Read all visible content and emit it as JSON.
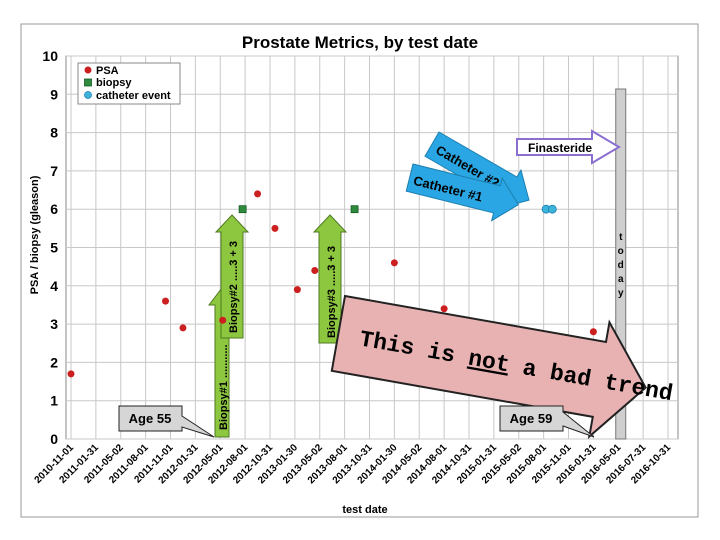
{
  "chart_data": {
    "type": "scatter",
    "title": "Prostate Metrics, by test date",
    "xlabel": "test date",
    "ylabel": "PSA / biopsy (gleason)",
    "ylim": [
      0,
      10
    ],
    "yticks": [
      "0",
      "1",
      "2",
      "3",
      "4",
      "5",
      "6",
      "7",
      "8",
      "9",
      "10"
    ],
    "xticks": [
      "2010-11-01",
      "2011-01-31",
      "2011-05-02",
      "2011-08-01",
      "2011-11-01",
      "2012-01-31",
      "2012-05-01",
      "2012-08-01",
      "2012-10-31",
      "2013-01-30",
      "2013-05-02",
      "2013-08-01",
      "2013-10-31",
      "2014-01-30",
      "2014-05-02",
      "2014-08-01",
      "2014-10-31",
      "2015-01-31",
      "2015-05-02",
      "2015-08-01",
      "2015-11-01",
      "2016-01-31",
      "2016-05-01",
      "2016-07-31",
      "2016-10-31"
    ],
    "grid": true,
    "legend_position": "top-left",
    "series": [
      {
        "name": "PSA",
        "color": "#cc1f1f",
        "marker": "circle",
        "points": [
          {
            "x": 0.0,
            "y": 1.7
          },
          {
            "x": 3.8,
            "y": 3.6
          },
          {
            "x": 4.5,
            "y": 2.9
          },
          {
            "x": 6.1,
            "y": 3.1
          },
          {
            "x": 7.5,
            "y": 6.4
          },
          {
            "x": 8.2,
            "y": 5.5
          },
          {
            "x": 9.1,
            "y": 3.9
          },
          {
            "x": 9.8,
            "y": 4.4
          },
          {
            "x": 13.0,
            "y": 4.6
          },
          {
            "x": 15.0,
            "y": 3.4
          },
          {
            "x": 16.5,
            "y": 2.9
          },
          {
            "x": 21.0,
            "y": 2.8
          }
        ]
      },
      {
        "name": "biopsy",
        "color": "#2e8b3e",
        "marker": "square",
        "points": [
          {
            "x": 6.9,
            "y": 6.0
          },
          {
            "x": 11.4,
            "y": 6.0
          }
        ]
      },
      {
        "name": "catheter event",
        "color": "#3db3d9",
        "marker": "circle",
        "points": [
          {
            "x": 19.1,
            "y": 6.0
          },
          {
            "x": 19.35,
            "y": 6.0
          }
        ]
      }
    ],
    "today_x": 22.1,
    "annotations": {
      "age_start": "Age 55",
      "age_end": "Age 59",
      "biopsy1": "Biopsy#1 ...........",
      "biopsy2": "Biopsy#2 .....3 + 3",
      "biopsy3": "Biopsy#3 .....3 + 3",
      "catheter1": "Catheter #1",
      "catheter2": "Catheter #2",
      "finasteride": "Finasteride",
      "today_letters": [
        "t",
        "o",
        "d",
        "a",
        "y"
      ],
      "trend_part1": "This is ",
      "trend_not": "not",
      "trend_part2": " a bad trend"
    }
  }
}
